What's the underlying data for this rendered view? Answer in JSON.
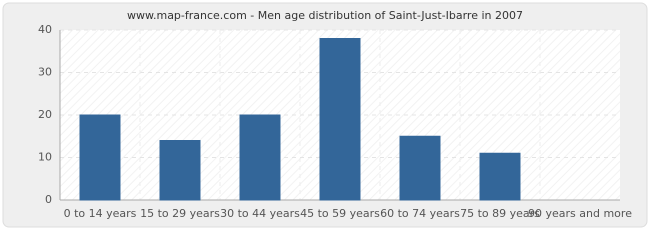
{
  "chart_data": {
    "type": "bar",
    "title": "www.map-france.com - Men age distribution of Saint-Just-Ibarre in 2007",
    "categories": [
      "0 to 14 years",
      "15 to 29 years",
      "30 to 44 years",
      "45 to 59 years",
      "60 to 74 years",
      "75 to 89 years",
      "90 years and more"
    ],
    "values": [
      20,
      14,
      20,
      38,
      15,
      11,
      0
    ],
    "color": "#336699",
    "ylim": [
      0,
      40
    ],
    "yticks": [
      0,
      10,
      20,
      30,
      40
    ],
    "grid": true
  }
}
